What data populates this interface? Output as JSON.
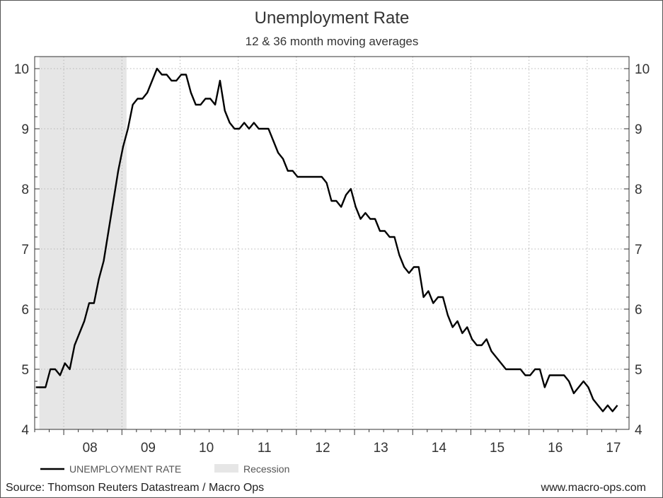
{
  "chart_data": {
    "type": "line",
    "title": "Unemployment Rate",
    "subtitle": "12 & 36 month moving averages",
    "xlabel": "",
    "ylabel": "",
    "x_start_year": 2007.5,
    "x_end_year": 2017.72,
    "ylim": [
      4,
      10.2
    ],
    "y_ticks": [
      4,
      5,
      6,
      7,
      8,
      9,
      10
    ],
    "x_tick_labels": [
      "08",
      "09",
      "10",
      "11",
      "12",
      "13",
      "14",
      "15",
      "16",
      "17"
    ],
    "grid": true,
    "legend_position": "bottom-left",
    "series": [
      {
        "name": "UNEMPLOYMENT RATE",
        "color": "#000000",
        "values": [
          4.7,
          4.7,
          4.7,
          5.0,
          5.0,
          4.9,
          5.1,
          5.0,
          5.4,
          5.6,
          5.8,
          6.1,
          6.1,
          6.5,
          6.8,
          7.3,
          7.8,
          8.3,
          8.7,
          9.0,
          9.4,
          9.5,
          9.5,
          9.6,
          9.8,
          10.0,
          9.9,
          9.9,
          9.8,
          9.8,
          9.9,
          9.9,
          9.6,
          9.4,
          9.4,
          9.5,
          9.5,
          9.4,
          9.8,
          9.3,
          9.1,
          9.0,
          9.0,
          9.1,
          9.0,
          9.1,
          9.0,
          9.0,
          9.0,
          8.8,
          8.6,
          8.5,
          8.3,
          8.3,
          8.2,
          8.2,
          8.2,
          8.2,
          8.2,
          8.2,
          8.1,
          7.8,
          7.8,
          7.7,
          7.9,
          8.0,
          7.7,
          7.5,
          7.6,
          7.5,
          7.5,
          7.3,
          7.3,
          7.2,
          7.2,
          6.9,
          6.7,
          6.6,
          6.7,
          6.7,
          6.2,
          6.3,
          6.1,
          6.2,
          6.2,
          5.9,
          5.7,
          5.8,
          5.6,
          5.7,
          5.5,
          5.4,
          5.4,
          5.5,
          5.3,
          5.2,
          5.1,
          5.0,
          5.0,
          5.0,
          5.0,
          4.9,
          4.9,
          5.0,
          5.0,
          4.7,
          4.9,
          4.9,
          4.9,
          4.9,
          4.8,
          4.6,
          4.7,
          4.8,
          4.7,
          4.5,
          4.4,
          4.3,
          4.4,
          4.3,
          4.4
        ]
      }
    ],
    "recession": {
      "name": "Recession",
      "start_year": 2007.58,
      "end_year": 2009.08,
      "color": "#e6e6e6"
    }
  },
  "footer": {
    "source": "Source: Thomson Reuters Datastream / Macro Ops",
    "website": "www.macro-ops.com"
  }
}
